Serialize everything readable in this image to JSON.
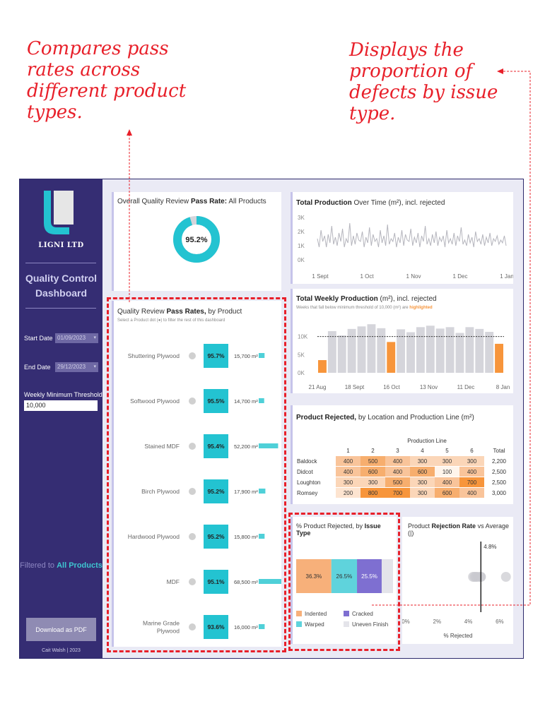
{
  "annotations": {
    "left": "Compares pass rates across different product types.",
    "right": "Displays the proportion of defects by issue type."
  },
  "sidebar": {
    "company": "LIGNI LTD",
    "dashboard_title": "Quality Control Dashboard",
    "start_date_label": "Start Date",
    "start_date_value": "01/09/2023",
    "end_date_label": "End Date",
    "end_date_value": "29/12/2023",
    "threshold_label": "Weekly Minimum Threshold",
    "threshold_value": "10,000",
    "filter_prefix": "Filtered to",
    "filter_value": "All Products",
    "download_label": "Download as PDF",
    "credit": "Cait Walsh | 2023"
  },
  "colors": {
    "teal": "#23c3d1",
    "orange": "#f7953b",
    "purple": "#7e6fd1",
    "grey_bar": "#d5d5db",
    "navy": "#352d73",
    "red_annotation": "#e8202a"
  },
  "overall": {
    "title_prefix": "Overall Quality Review",
    "title_bold": "Pass Rate:",
    "title_suffix": "All Products",
    "value": 95.2,
    "value_label": "95.2%"
  },
  "products": {
    "title_prefix": "Quality Review",
    "title_bold": "Pass Rates,",
    "title_suffix": "by Product",
    "subtitle": "Select a Product dot (●) to filter the rest of this dashboard",
    "rows": [
      {
        "name": "Shuttering Plywood",
        "rate": 95.7,
        "rate_label": "95.7%",
        "volume": 15700,
        "volume_label": "15,700 m²"
      },
      {
        "name": "Softwood Plywood",
        "rate": 95.5,
        "rate_label": "95.5%",
        "volume": 14700,
        "volume_label": "14,700 m²"
      },
      {
        "name": "Stained MDF",
        "rate": 95.4,
        "rate_label": "95.4%",
        "volume": 52200,
        "volume_label": "52,200 m²"
      },
      {
        "name": "Birch Plywood",
        "rate": 95.2,
        "rate_label": "95.2%",
        "volume": 17900,
        "volume_label": "17,900 m²"
      },
      {
        "name": "Hardwood Plywood",
        "rate": 95.2,
        "rate_label": "95.2%",
        "volume": 15800,
        "volume_label": "15,800 m²"
      },
      {
        "name": "MDF",
        "rate": 95.1,
        "rate_label": "95.1%",
        "volume": 68500,
        "volume_label": "68,500 m²"
      },
      {
        "name": "Marine Grade Plywood",
        "rate": 93.6,
        "rate_label": "93.6%",
        "volume": 16000,
        "volume_label": "16,000 m²"
      }
    ]
  },
  "production_over_time": {
    "title_bold": "Total Production",
    "title_suffix": "Over Time (m²), incl. rejected",
    "y_ticks": [
      "3K",
      "2K",
      "1K",
      "0K"
    ],
    "x_ticks": [
      "1 Sept",
      "1 Oct",
      "1 Nov",
      "1 Dec",
      "1 Jan"
    ]
  },
  "weekly": {
    "title_bold": "Total Weekly Production",
    "title_suffix": "(m²), incl. rejected",
    "subtitle_prefix": "Weeks that fall below minimum threshold of 10,000 (m²) are",
    "subtitle_highlight": "highlighted",
    "y_ticks": [
      "10K",
      "5K",
      "0K"
    ],
    "x_ticks": [
      "21 Aug",
      "18 Sept",
      "16 Oct",
      "13 Nov",
      "11 Dec",
      "8 Jan"
    ]
  },
  "rejected_table": {
    "title_bold": "Product Rejected,",
    "title_suffix": "by Location and Production Line (m²)",
    "column_header": "Production Line",
    "columns": [
      "1",
      "2",
      "3",
      "4",
      "5",
      "6"
    ],
    "total_label": "Total",
    "rows": [
      {
        "location": "Baldock",
        "values": [
          400,
          500,
          400,
          300,
          300,
          300
        ],
        "labels": [
          "400",
          "500",
          "400",
          "300",
          "300",
          "300"
        ],
        "total": "2,200"
      },
      {
        "location": "Didcot",
        "values": [
          400,
          600,
          400,
          600,
          100,
          400
        ],
        "labels": [
          "400",
          "600",
          "400",
          "600",
          "100",
          "400"
        ],
        "total": "2,500"
      },
      {
        "location": "Loughton",
        "values": [
          300,
          300,
          500,
          300,
          400,
          700
        ],
        "labels": [
          "300",
          "300",
          "500",
          "300",
          "400",
          "700"
        ],
        "total": "2,500"
      },
      {
        "location": "Romsey",
        "values": [
          200,
          800,
          700,
          300,
          600,
          400
        ],
        "labels": [
          "200",
          "800",
          "700",
          "300",
          "600",
          "400"
        ],
        "total": "3,000"
      }
    ]
  },
  "issue_type": {
    "title_prefix": "% Product Rejected, by",
    "title_bold": "Issue Type",
    "segments": [
      {
        "name": "Indented",
        "value": 36.3,
        "label": "36.3%",
        "color": "#f7b07a"
      },
      {
        "name": "Warped",
        "value": 26.5,
        "label": "26.5%",
        "color": "#5fd3dc"
      },
      {
        "name": "Cracked",
        "value": 25.5,
        "label": "25.5%",
        "color": "#7e6fd1"
      },
      {
        "name": "Uneven Finish",
        "value": 11.7,
        "label": "",
        "color": "#e4e4ea"
      }
    ]
  },
  "rejection_rate": {
    "title_prefix": "Product",
    "title_bold": "Rejection Rate",
    "title_suffix": "vs Average (|)",
    "average_label": "4.8%",
    "x_ticks": [
      "0%",
      "2%",
      "4%",
      "6%"
    ],
    "x_label": "% Rejected"
  },
  "chart_data": [
    {
      "type": "pie",
      "title": "Overall Quality Review Pass Rate: All Products",
      "categories": [
        "Pass",
        "Fail"
      ],
      "values": [
        95.2,
        4.8
      ]
    },
    {
      "type": "bar",
      "title": "Quality Review Pass Rates, by Product",
      "categories": [
        "Shuttering Plywood",
        "Softwood Plywood",
        "Stained MDF",
        "Birch Plywood",
        "Hardwood Plywood",
        "MDF",
        "Marine Grade Plywood"
      ],
      "series": [
        {
          "name": "Pass rate",
          "values": [
            95.7,
            95.5,
            95.4,
            95.2,
            95.2,
            95.1,
            93.6
          ]
        },
        {
          "name": "Volume (m²)",
          "values": [
            15700,
            14700,
            52200,
            17900,
            15800,
            68500,
            16000
          ]
        }
      ]
    },
    {
      "type": "line",
      "title": "Total Production Over Time (m²), incl. rejected",
      "ylim": [
        0,
        3000
      ],
      "y": [
        1500,
        900,
        2100,
        1300,
        1700,
        900,
        1800,
        1200,
        2400,
        1100,
        1600,
        1000,
        1900,
        1300,
        2200,
        900,
        1500,
        1200,
        2600,
        1000,
        1700,
        1100,
        1900,
        1400,
        1300,
        2000,
        900,
        1600,
        1200,
        2300,
        1000,
        1800,
        1300,
        1500,
        900,
        2100,
        1200,
        1700,
        1000,
        2500,
        1100,
        1500,
        1300,
        1900,
        900,
        1600,
        1200,
        2100,
        1000,
        1800,
        1400,
        1300,
        2200,
        1000,
        1600,
        1200,
        1900,
        900,
        1700,
        1300,
        2400,
        1100,
        1500,
        1000,
        1800,
        1200,
        2000,
        1000,
        1600,
        1300,
        1700,
        900,
        2100,
        1200,
        1500,
        1100,
        1900,
        1000,
        1700,
        1300,
        2300,
        1100,
        1400,
        1000,
        1800,
        1200,
        1600,
        900,
        2000,
        1300,
        1500,
        1100,
        1800,
        1000,
        1600,
        1200,
        1900,
        1000,
        1500,
        1300,
        1700,
        1100,
        1400,
        1200,
        1700,
        1000
      ]
    },
    {
      "type": "bar",
      "title": "Total Weekly Production (m²), incl. rejected",
      "ylim": [
        0,
        15000
      ],
      "threshold": 10000,
      "values": [
        3500,
        11500,
        10300,
        12100,
        12800,
        13400,
        12300,
        8500,
        12000,
        11200,
        12600,
        13000,
        12200,
        12600,
        11000,
        12600,
        12100,
        11300,
        8000
      ]
    },
    {
      "type": "heatmap",
      "title": "Product Rejected, by Location and Production Line (m²)",
      "x": [
        "1",
        "2",
        "3",
        "4",
        "5",
        "6"
      ],
      "y": [
        "Baldock",
        "Didcot",
        "Loughton",
        "Romsey"
      ],
      "values": [
        [
          400,
          500,
          400,
          300,
          300,
          300
        ],
        [
          400,
          600,
          400,
          600,
          100,
          400
        ],
        [
          300,
          300,
          500,
          300,
          400,
          700
        ],
        [
          200,
          800,
          700,
          300,
          600,
          400
        ]
      ]
    },
    {
      "type": "bar",
      "title": "% Product Rejected, by Issue Type",
      "categories": [
        "Indented",
        "Warped",
        "Cracked",
        "Uneven Finish"
      ],
      "values": [
        36.3,
        26.5,
        25.5,
        11.7
      ]
    },
    {
      "type": "scatter",
      "title": "Product Rejection Rate vs Average (|)",
      "xlabel": "% Rejected",
      "xlim": [
        0,
        7
      ],
      "average": 4.8,
      "x": [
        4.3,
        4.4,
        4.5,
        4.6,
        4.8,
        4.8,
        6.4
      ]
    }
  ]
}
